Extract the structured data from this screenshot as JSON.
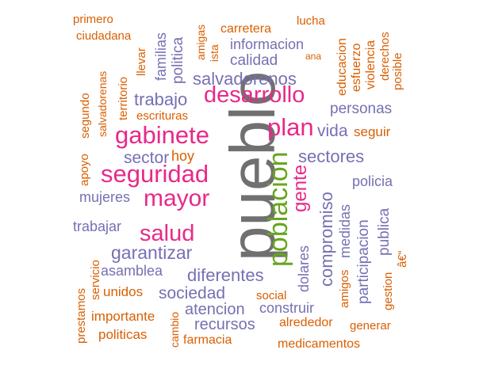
{
  "palette": {
    "gray": "#707070",
    "pink": "#e7298a",
    "green": "#66a61e",
    "purple": "#7570b3",
    "orange": "#d95f02"
  },
  "words": [
    {
      "text": "pueblo",
      "color": "gray"
    },
    {
      "text": "poblacion",
      "color": "green"
    },
    {
      "text": "desarrollo",
      "color": "pink"
    },
    {
      "text": "gabinete",
      "color": "pink"
    },
    {
      "text": "seguridad",
      "color": "pink"
    },
    {
      "text": "mayor",
      "color": "pink"
    },
    {
      "text": "salud",
      "color": "pink"
    },
    {
      "text": "plan",
      "color": "pink"
    },
    {
      "text": "gente",
      "color": "pink"
    },
    {
      "text": "salvadorenos",
      "color": "purple"
    },
    {
      "text": "trabajo",
      "color": "purple"
    },
    {
      "text": "sectores",
      "color": "purple"
    },
    {
      "text": "sector",
      "color": "purple"
    },
    {
      "text": "garantizar",
      "color": "purple"
    },
    {
      "text": "diferentes",
      "color": "purple"
    },
    {
      "text": "compromiso",
      "color": "purple"
    },
    {
      "text": "vida",
      "color": "purple"
    },
    {
      "text": "personas",
      "color": "purple"
    },
    {
      "text": "calidad",
      "color": "purple"
    },
    {
      "text": "informacion",
      "color": "purple"
    },
    {
      "text": "sociedad",
      "color": "purple"
    },
    {
      "text": "atencion",
      "color": "purple"
    },
    {
      "text": "construir",
      "color": "purple"
    },
    {
      "text": "recursos",
      "color": "purple"
    },
    {
      "text": "asamblea",
      "color": "purple"
    },
    {
      "text": "mujeres",
      "color": "purple"
    },
    {
      "text": "trabajar",
      "color": "purple"
    },
    {
      "text": "policia",
      "color": "purple"
    },
    {
      "text": "publica",
      "color": "purple"
    },
    {
      "text": "participacion",
      "color": "purple"
    },
    {
      "text": "dolares",
      "color": "purple"
    },
    {
      "text": "medidas",
      "color": "purple"
    },
    {
      "text": "politica",
      "color": "purple"
    },
    {
      "text": "familias",
      "color": "purple"
    },
    {
      "text": "primero",
      "color": "orange"
    },
    {
      "text": "ciudadana",
      "color": "orange"
    },
    {
      "text": "carretera",
      "color": "orange"
    },
    {
      "text": "lucha",
      "color": "orange"
    },
    {
      "text": "amigas",
      "color": "orange"
    },
    {
      "text": "ista",
      "color": "orange"
    },
    {
      "text": "llevar",
      "color": "orange"
    },
    {
      "text": "territorio",
      "color": "orange"
    },
    {
      "text": "salvadorenas",
      "color": "orange"
    },
    {
      "text": "segundo",
      "color": "orange"
    },
    {
      "text": "apoyo",
      "color": "orange"
    },
    {
      "text": "escrituras",
      "color": "orange"
    },
    {
      "text": "hoy",
      "color": "orange"
    },
    {
      "text": "educacion",
      "color": "orange"
    },
    {
      "text": "esfuerzo",
      "color": "orange"
    },
    {
      "text": "violencia",
      "color": "orange"
    },
    {
      "text": "derechos",
      "color": "orange"
    },
    {
      "text": "posible",
      "color": "orange"
    },
    {
      "text": "ana",
      "color": "orange"
    },
    {
      "text": "seguir",
      "color": "orange"
    },
    {
      "text": "servicio",
      "color": "orange"
    },
    {
      "text": "unidos",
      "color": "orange"
    },
    {
      "text": "prestamos",
      "color": "orange"
    },
    {
      "text": "importante",
      "color": "orange"
    },
    {
      "text": "politicas",
      "color": "orange"
    },
    {
      "text": "cambio",
      "color": "orange"
    },
    {
      "text": "farmacia",
      "color": "orange"
    },
    {
      "text": "social",
      "color": "orange"
    },
    {
      "text": "alrededor",
      "color": "orange"
    },
    {
      "text": "medicamentos",
      "color": "orange"
    },
    {
      "text": "generar",
      "color": "orange"
    },
    {
      "text": "amigos",
      "color": "orange"
    },
    {
      "text": "gestion",
      "color": "orange"
    },
    {
      "text": "â€“",
      "color": "orange"
    }
  ]
}
